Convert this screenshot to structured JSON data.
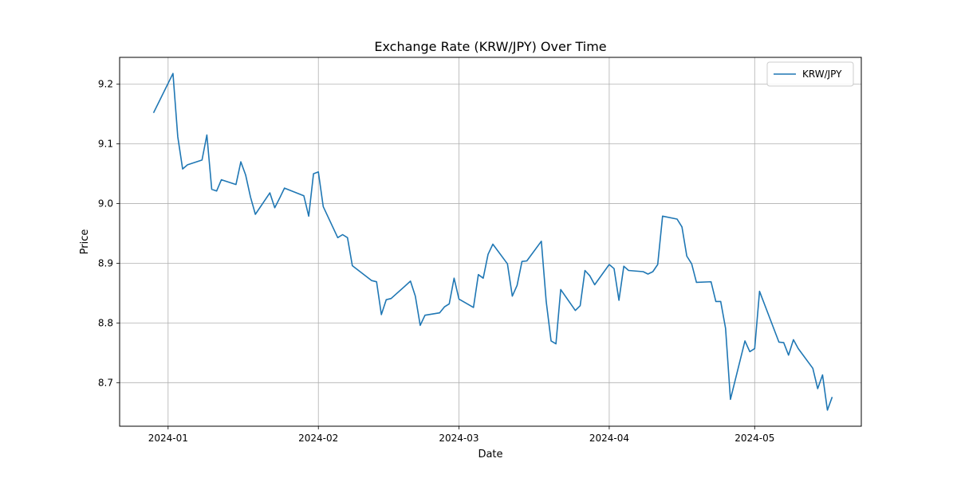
{
  "chart_data": {
    "type": "line",
    "title": "Exchange Rate (KRW/JPY) Over Time",
    "xlabel": "Date",
    "ylabel": "Price",
    "xlim": [
      "2023-12-22",
      "2024-05-23"
    ],
    "ylim": [
      8.627,
      9.245
    ],
    "x_ticks": [
      "2024-01-01",
      "2024-02-01",
      "2024-03-01",
      "2024-04-01",
      "2024-05-01"
    ],
    "x_tick_labels": [
      "2024-01",
      "2024-02",
      "2024-03",
      "2024-04",
      "2024-05"
    ],
    "y_ticks": [
      8.7,
      8.8,
      8.9,
      9.0,
      9.1,
      9.2
    ],
    "y_tick_labels": [
      "8.7",
      "8.8",
      "8.9",
      "9.0",
      "9.1",
      "9.2"
    ],
    "grid": true,
    "legend_position": "top-right",
    "series": [
      {
        "name": "KRW/JPY",
        "color": "#1f77b4",
        "x": [
          "2023-12-29",
          "2024-01-02",
          "2024-01-03",
          "2024-01-04",
          "2024-01-05",
          "2024-01-08",
          "2024-01-09",
          "2024-01-10",
          "2024-01-11",
          "2024-01-12",
          "2024-01-15",
          "2024-01-16",
          "2024-01-17",
          "2024-01-18",
          "2024-01-19",
          "2024-01-22",
          "2024-01-23",
          "2024-01-24",
          "2024-01-25",
          "2024-01-29",
          "2024-01-30",
          "2024-01-31",
          "2024-02-01",
          "2024-02-02",
          "2024-02-05",
          "2024-02-06",
          "2024-02-07",
          "2024-02-08",
          "2024-02-12",
          "2024-02-13",
          "2024-02-14",
          "2024-02-15",
          "2024-02-16",
          "2024-02-20",
          "2024-02-21",
          "2024-02-22",
          "2024-02-23",
          "2024-02-26",
          "2024-02-27",
          "2024-02-28",
          "2024-02-29",
          "2024-03-01",
          "2024-03-04",
          "2024-03-05",
          "2024-03-06",
          "2024-03-07",
          "2024-03-08",
          "2024-03-11",
          "2024-03-12",
          "2024-03-13",
          "2024-03-14",
          "2024-03-15",
          "2024-03-18",
          "2024-03-19",
          "2024-03-20",
          "2024-03-21",
          "2024-03-22",
          "2024-03-25",
          "2024-03-26",
          "2024-03-27",
          "2024-03-28",
          "2024-03-29",
          "2024-04-01",
          "2024-04-02",
          "2024-04-03",
          "2024-04-04",
          "2024-04-05",
          "2024-04-08",
          "2024-04-09",
          "2024-04-10",
          "2024-04-11",
          "2024-04-12",
          "2024-04-15",
          "2024-04-16",
          "2024-04-17",
          "2024-04-18",
          "2024-04-19",
          "2024-04-22",
          "2024-04-23",
          "2024-04-24",
          "2024-04-25",
          "2024-04-26",
          "2024-04-29",
          "2024-04-30",
          "2024-05-01",
          "2024-05-02",
          "2024-05-03",
          "2024-05-06",
          "2024-05-07",
          "2024-05-08",
          "2024-05-09",
          "2024-05-10",
          "2024-05-13",
          "2024-05-14",
          "2024-05-15",
          "2024-05-16",
          "2024-05-17"
        ],
        "values": [
          9.152,
          9.218,
          9.112,
          9.058,
          9.065,
          9.073,
          9.115,
          9.024,
          9.021,
          9.04,
          9.032,
          9.07,
          9.048,
          9.011,
          8.982,
          9.018,
          8.993,
          9.009,
          9.026,
          9.013,
          8.979,
          9.05,
          9.053,
          8.995,
          8.943,
          8.948,
          8.943,
          8.896,
          8.871,
          8.869,
          8.814,
          8.839,
          8.841,
          8.87,
          8.845,
          8.796,
          8.813,
          8.817,
          8.827,
          8.832,
          8.875,
          8.84,
          8.826,
          8.881,
          8.875,
          8.915,
          8.932,
          8.899,
          8.845,
          8.863,
          8.903,
          8.904,
          8.937,
          8.836,
          8.77,
          8.765,
          8.856,
          8.821,
          8.829,
          8.888,
          8.879,
          8.864,
          8.898,
          8.891,
          8.838,
          8.895,
          8.888,
          8.886,
          8.882,
          8.886,
          8.898,
          8.979,
          8.974,
          8.961,
          8.912,
          8.899,
          8.868,
          8.869,
          8.836,
          8.836,
          8.791,
          8.672,
          8.77,
          8.752,
          8.757,
          8.853,
          8.832,
          8.768,
          8.767,
          8.746,
          8.772,
          8.757,
          8.724,
          8.69,
          8.713,
          8.654,
          8.676
        ]
      }
    ]
  }
}
